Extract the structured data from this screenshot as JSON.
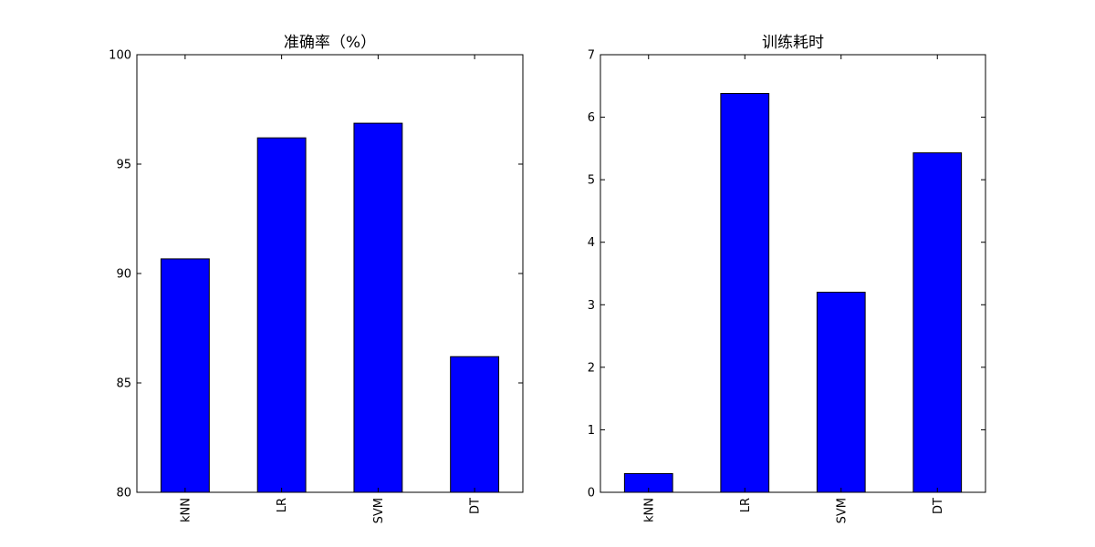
{
  "colors": {
    "bar": "#0000ff",
    "axis": "#000000",
    "background": "#ffffff"
  },
  "chart_data": [
    {
      "type": "bar",
      "title": "准确率（%）",
      "categories": [
        "kNN",
        "LR",
        "SVM",
        "DT"
      ],
      "values": [
        90.67,
        96.2,
        96.87,
        86.2
      ],
      "ylim": [
        80,
        100
      ],
      "yticks": [
        80,
        85,
        90,
        95,
        100
      ],
      "xlabel": "",
      "ylabel": "",
      "grid": false,
      "legend": "none"
    },
    {
      "type": "bar",
      "title": "训练耗时",
      "categories": [
        "kNN",
        "LR",
        "SVM",
        "DT"
      ],
      "values": [
        0.3,
        6.38,
        3.2,
        5.43
      ],
      "ylim": [
        0,
        7
      ],
      "yticks": [
        0,
        1,
        2,
        3,
        4,
        5,
        6,
        7
      ],
      "xlabel": "",
      "ylabel": "",
      "grid": false,
      "legend": "none"
    }
  ]
}
